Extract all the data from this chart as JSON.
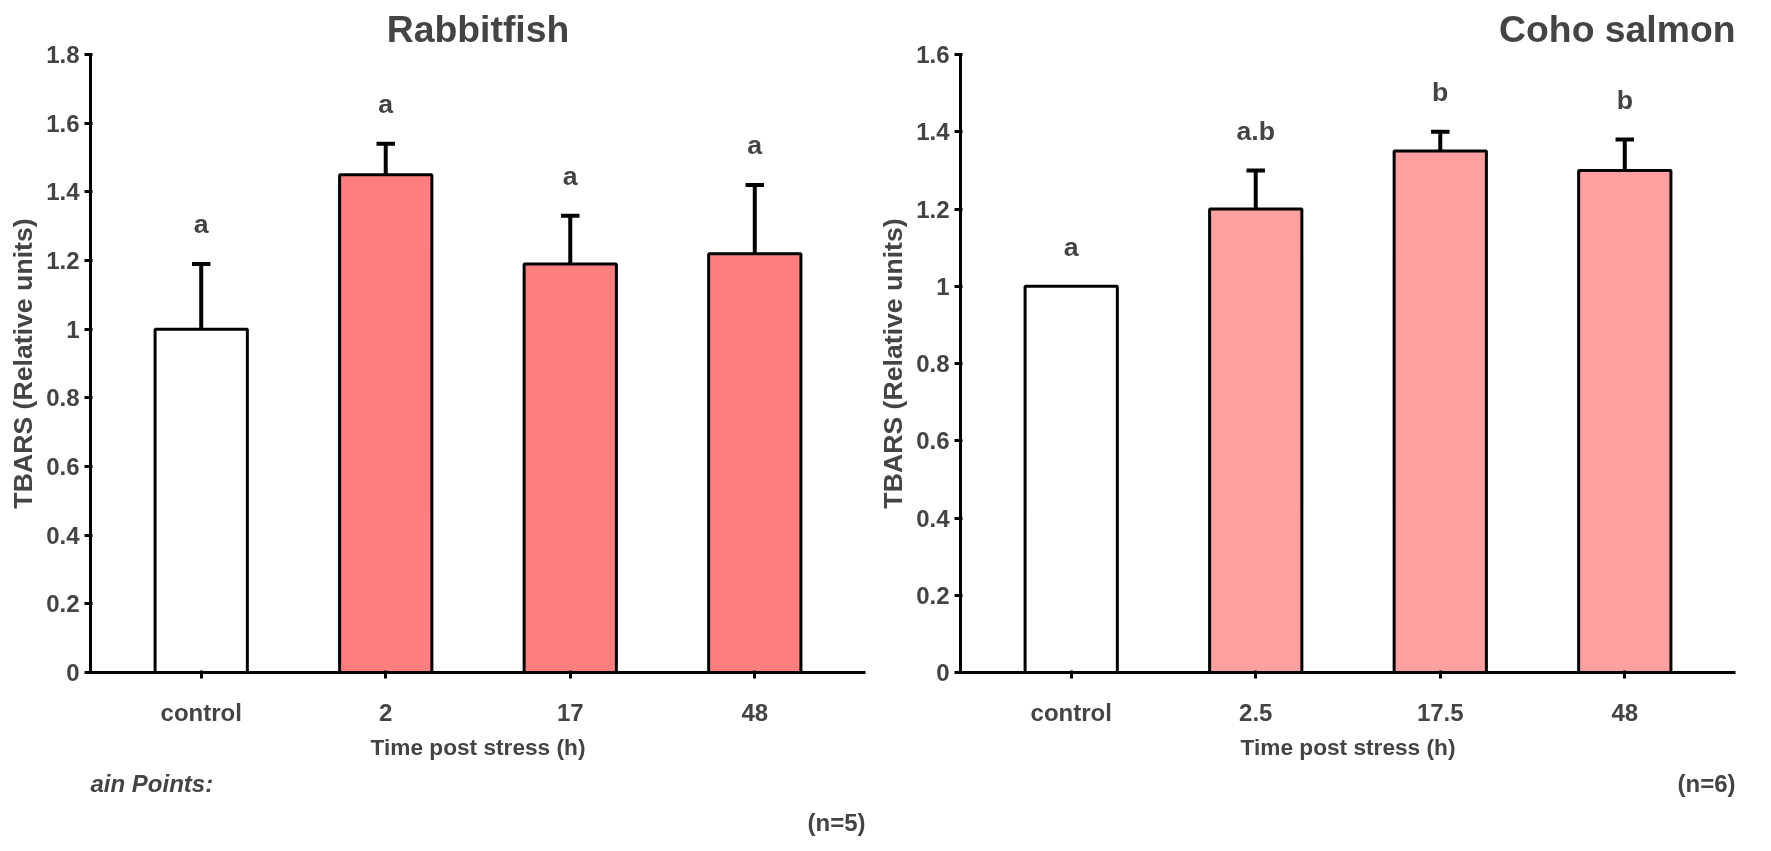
{
  "chart_data": [
    {
      "type": "bar",
      "title": "Rabbitfish",
      "xlabel": "Time post stress (h)",
      "ylabel": "TBARS (Relative units)",
      "categories": [
        "control",
        "2",
        "17",
        "48"
      ],
      "values": [
        1.0,
        1.45,
        1.19,
        1.22
      ],
      "colors": [
        "#ffffff",
        "#ff7f7f",
        "#ff7f7f",
        "#ff7f7f"
      ],
      "errors": [
        [
          1.0,
          1.19
        ],
        [
          1.45,
          1.54
        ],
        [
          1.19,
          1.33
        ],
        [
          1.22,
          1.42
        ]
      ],
      "ylim": [
        0,
        1.8
      ],
      "yticks": [
        0,
        0.2,
        0.4,
        0.6,
        0.8,
        1,
        1.2,
        1.4,
        1.6,
        1.8
      ],
      "grid": false,
      "annotations": [
        "a",
        "a",
        "a",
        "a",
        "ain Points:",
        "(n=5)"
      ]
    },
    {
      "type": "bar",
      "title": "Coho salmon",
      "xlabel": "Time post stress (h)",
      "ylabel": "TBARS (Relative units)",
      "categories": [
        "control",
        "2.5",
        "17.5",
        "48"
      ],
      "values": [
        1.0,
        1.2,
        1.35,
        1.3
      ],
      "colors": [
        "#ffffff",
        "#ffa0a0",
        "#ffa0a0",
        "#ffa0a0"
      ],
      "errors": [
        null,
        [
          1.2,
          1.3
        ],
        [
          1.35,
          1.4
        ],
        [
          1.3,
          1.38
        ]
      ],
      "ylim": [
        0,
        1.6
      ],
      "yticks": [
        0,
        0.2,
        0.4,
        0.6,
        0.8,
        1,
        1.2,
        1.4,
        1.6
      ],
      "grid": false,
      "annotations": [
        "a",
        "a.b",
        "b",
        "b",
        "(n=6)"
      ]
    }
  ]
}
